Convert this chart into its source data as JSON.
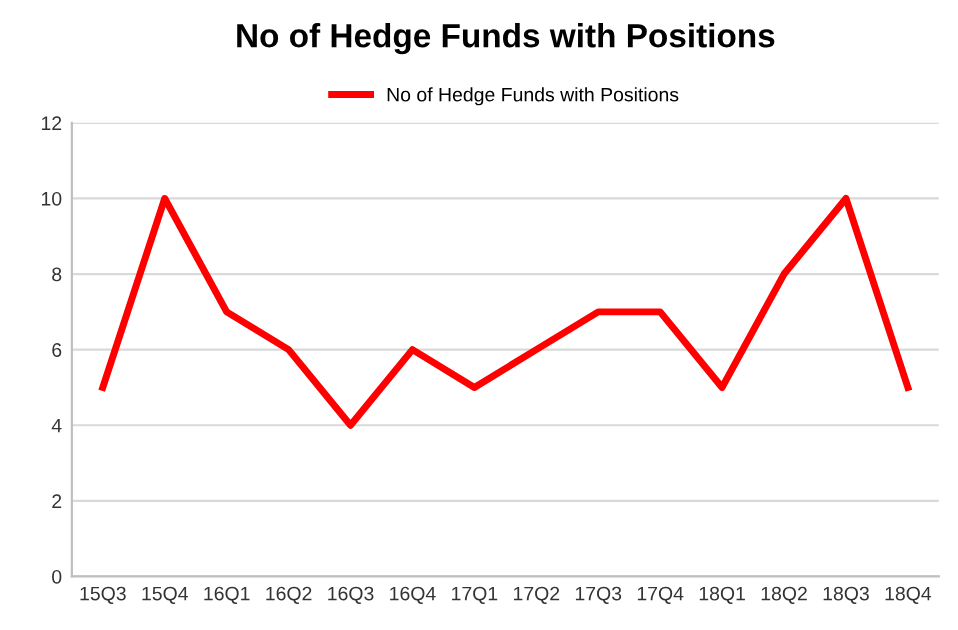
{
  "chart_data": {
    "type": "line",
    "title": "No of Hedge Funds with Positions",
    "categories": [
      "15Q3",
      "15Q4",
      "16Q1",
      "16Q2",
      "16Q3",
      "16Q4",
      "17Q1",
      "17Q2",
      "17Q3",
      "17Q4",
      "18Q1",
      "18Q2",
      "18Q3",
      "18Q4"
    ],
    "series": [
      {
        "name": "No of Hedge Funds with Positions",
        "color": "#ff0000",
        "values": [
          5,
          10,
          7,
          6,
          4,
          6,
          5,
          6,
          7,
          7,
          5,
          8,
          10,
          5
        ]
      }
    ],
    "ylim": [
      0,
      12
    ],
    "yticks": [
      0,
      2,
      4,
      6,
      8,
      10,
      12
    ],
    "grid": "y",
    "legend": "top",
    "marker": "none",
    "line_style": "solid"
  }
}
